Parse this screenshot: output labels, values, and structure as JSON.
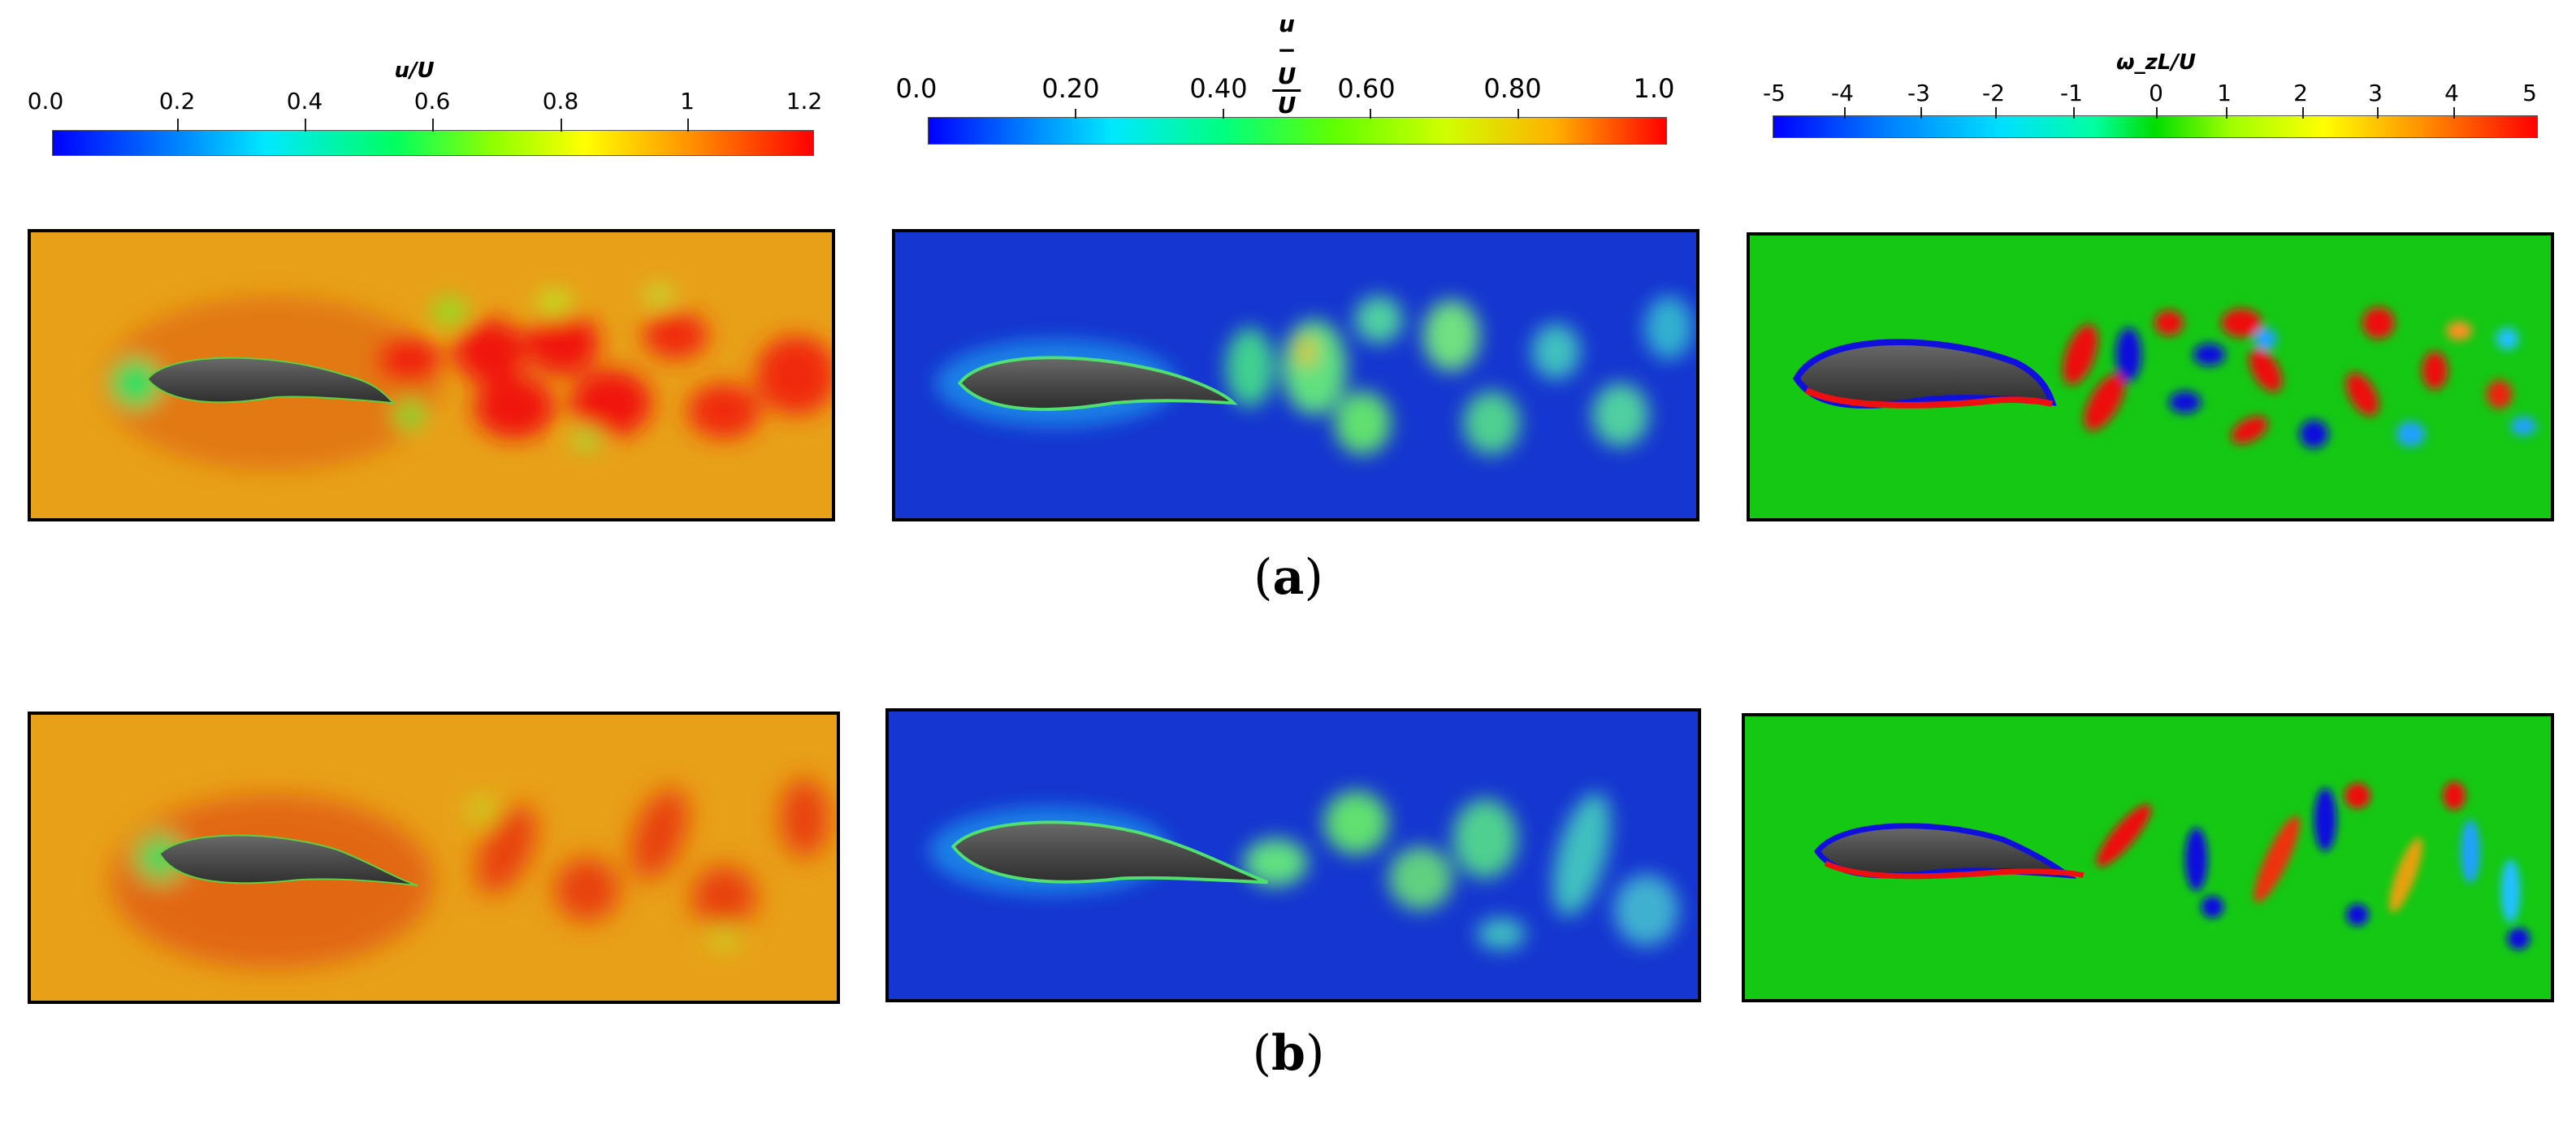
{
  "colorbars": {
    "velocity": {
      "title": "u/U",
      "ticks": [
        "0.0",
        "0.2",
        "0.4",
        "0.6",
        "0.8",
        "1",
        "1.2"
      ],
      "range": [
        0,
        1.2
      ]
    },
    "deficit": {
      "numerator": "u − U",
      "denominator": "U",
      "ticks": [
        "0.0",
        "0.20",
        "0.40",
        "0.60",
        "0.80",
        "1.0"
      ],
      "range": [
        0,
        1.0
      ]
    },
    "vorticity": {
      "title": "ω_zL/U",
      "ticks": [
        "-5",
        "-4",
        "-3",
        "-2",
        "-1",
        "0",
        "1",
        "2",
        "3",
        "4",
        "5"
      ],
      "range": [
        -5,
        5
      ]
    }
  },
  "rows": [
    {
      "caption_open": "(",
      "caption_letter": "a",
      "caption_close": ")"
    },
    {
      "caption_open": "(",
      "caption_letter": "b",
      "caption_close": ")"
    }
  ],
  "colors": {
    "velocity_bg": "#e8a018",
    "deficit_bg": "#1536d0",
    "vorticity_bg": "#14c814",
    "body": "#4a4a4a"
  }
}
